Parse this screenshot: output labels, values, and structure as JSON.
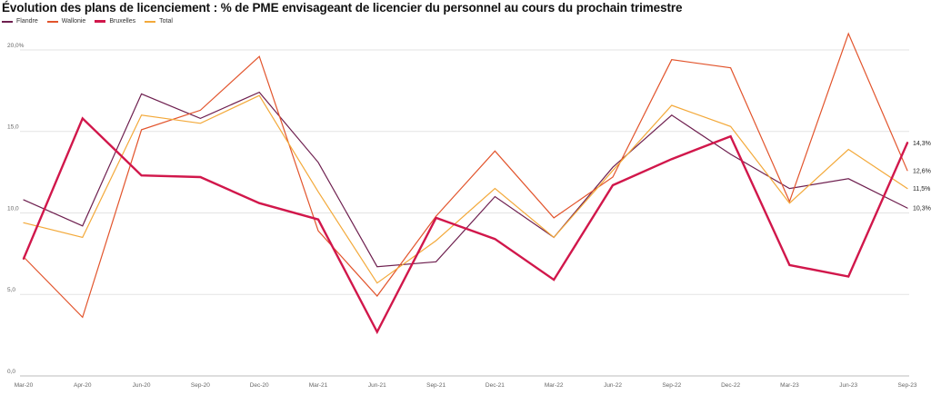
{
  "chart_data": {
    "type": "line",
    "title": "Évolution des plans de licenciement : % de PME envisageant de licencier du personnel au cours du prochain trimestre",
    "categories": [
      "Mar-20",
      "Apr-20",
      "Jun-20",
      "Sep-20",
      "Dec-20",
      "Mar-21",
      "Jun-21",
      "Sep-21",
      "Dec-21",
      "Mar-22",
      "Jun-22",
      "Sep-22",
      "Dec-22",
      "Mar-23",
      "Jun-23",
      "Sep-23"
    ],
    "ylim": [
      0,
      20.5
    ],
    "yticks": [
      0,
      5,
      10,
      15,
      20
    ],
    "ytick_labels": [
      "0,0",
      "5,0",
      "10,0",
      "15,0",
      "20,0%"
    ],
    "grid": true,
    "legend_position": "top-left",
    "series": [
      {
        "name": "Flandre",
        "color": "#6e1f4f",
        "width": 1.2,
        "values": [
          10.8,
          9.2,
          17.3,
          15.8,
          17.4,
          13.1,
          6.7,
          7.0,
          11.0,
          8.5,
          12.8,
          16.0,
          13.6,
          11.5,
          12.1,
          10.3
        ],
        "end_label": "10,3%"
      },
      {
        "name": "Wallonie",
        "color": "#e2542c",
        "width": 1.2,
        "values": [
          7.3,
          3.6,
          15.1,
          16.3,
          19.6,
          8.9,
          4.9,
          9.8,
          13.8,
          9.7,
          12.2,
          19.4,
          18.9,
          10.7,
          21.0,
          12.6
        ],
        "end_label": "12,6%"
      },
      {
        "name": "Bruxelles",
        "color": "#d1174b",
        "width": 2.4,
        "values": [
          7.2,
          15.8,
          12.3,
          12.2,
          10.6,
          9.6,
          2.7,
          9.7,
          8.4,
          5.9,
          11.7,
          13.3,
          14.7,
          6.8,
          6.1,
          14.3
        ],
        "end_label": "14,3%"
      },
      {
        "name": "Total",
        "color": "#f3a93a",
        "width": 1.2,
        "values": [
          9.4,
          8.5,
          16.0,
          15.5,
          17.2,
          11.3,
          5.7,
          8.3,
          11.5,
          8.5,
          12.6,
          16.6,
          15.3,
          10.6,
          13.9,
          11.5
        ],
        "end_label": "11,5%"
      }
    ]
  }
}
